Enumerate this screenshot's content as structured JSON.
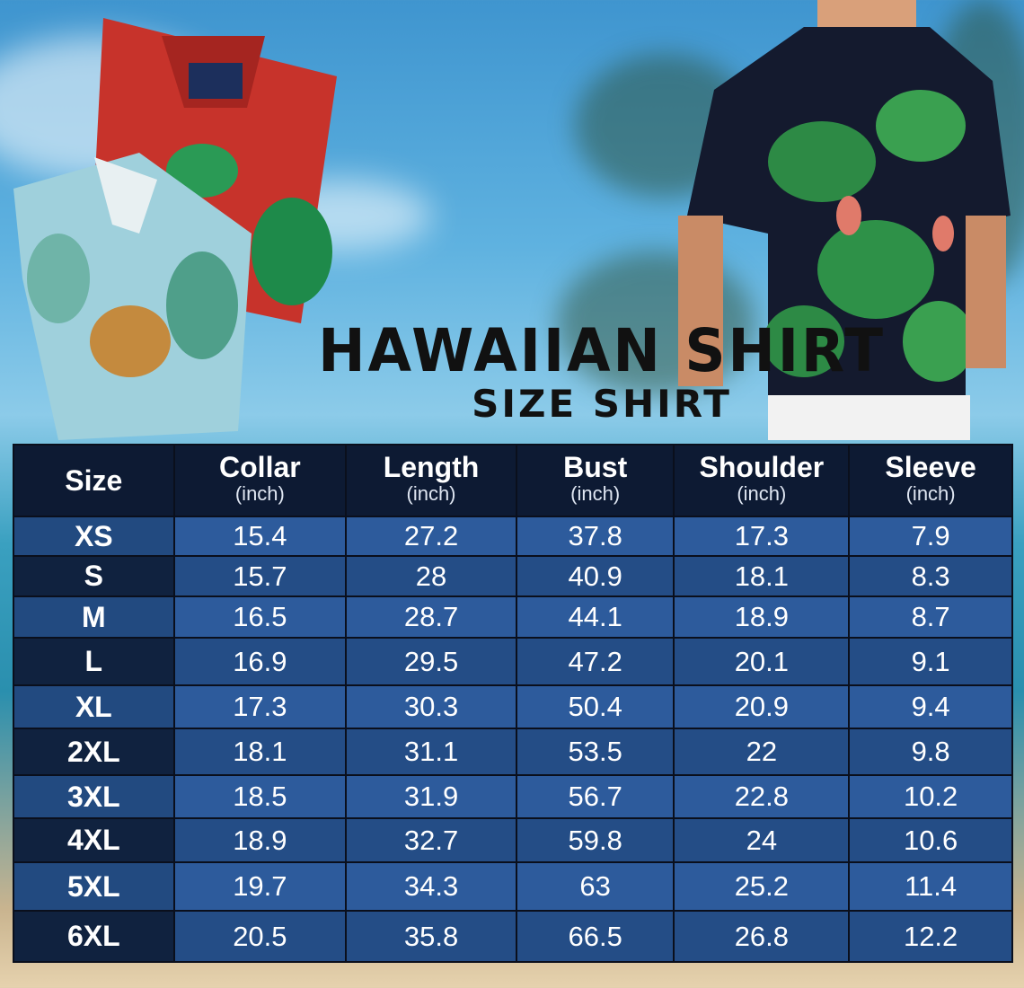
{
  "title": "HAWAIIAN SHIRT",
  "subtitle": "SIZE SHIRT",
  "colors": {
    "header": "#0d1a33",
    "row_light": "#2d5b9c",
    "row_dark": "#244d86",
    "size_light": "#224a80",
    "size_dark": "#10223f"
  },
  "table": {
    "headers": [
      {
        "label": "Size",
        "unit": ""
      },
      {
        "label": "Collar",
        "unit": "(inch)"
      },
      {
        "label": "Length",
        "unit": "(inch)"
      },
      {
        "label": "Bust",
        "unit": "(inch)"
      },
      {
        "label": "Shoulder",
        "unit": "(inch)"
      },
      {
        "label": "Sleeve",
        "unit": "(inch)"
      }
    ],
    "rows": [
      [
        "XS",
        "15.4",
        "27.2",
        "37.8",
        "17.3",
        "7.9"
      ],
      [
        "S",
        "15.7",
        "28",
        "40.9",
        "18.1",
        "8.3"
      ],
      [
        "M",
        "16.5",
        "28.7",
        "44.1",
        "18.9",
        "8.7"
      ],
      [
        "L",
        "16.9",
        "29.5",
        "47.2",
        "20.1",
        "9.1"
      ],
      [
        "XL",
        "17.3",
        "30.3",
        "50.4",
        "20.9",
        "9.4"
      ],
      [
        "2XL",
        "18.1",
        "31.1",
        "53.5",
        "22",
        "9.8"
      ],
      [
        "3XL",
        "18.5",
        "31.9",
        "56.7",
        "22.8",
        "10.2"
      ],
      [
        "4XL",
        "18.9",
        "32.7",
        "59.8",
        "24",
        "10.6"
      ],
      [
        "5XL",
        "19.7",
        "34.3",
        "63",
        "25.2",
        "11.4"
      ],
      [
        "6XL",
        "20.5",
        "35.8",
        "66.5",
        "26.8",
        "12.2"
      ]
    ]
  }
}
